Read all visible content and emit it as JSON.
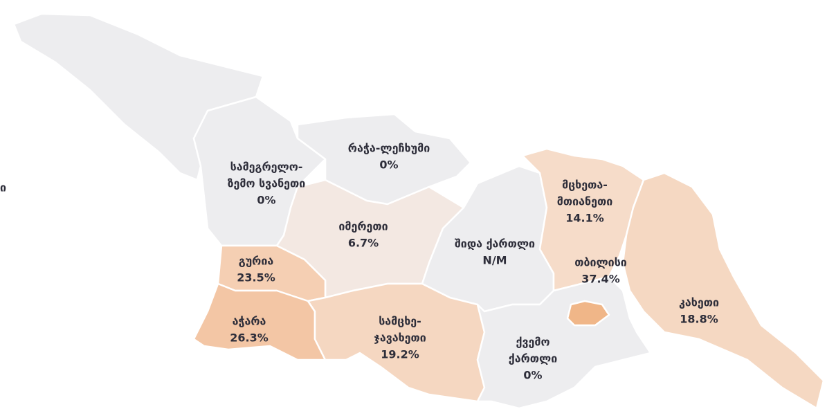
{
  "side_text": "ი",
  "regions": [
    {
      "name": [
        "რაჭა-ლეჩხუმი"
      ],
      "value": 0,
      "value_label": "0%",
      "color": "#ededef"
    },
    {
      "name": [
        "სამეგრელო-",
        "ზემო სვანეთი"
      ],
      "value": 0,
      "value_label": "0%",
      "color": "#ededef"
    },
    {
      "name": [
        "იმერეთი"
      ],
      "value": 6.7,
      "value_label": "6.7%",
      "color": "#f3e8e2"
    },
    {
      "name": [
        "შიდა ქართლი"
      ],
      "value": null,
      "value_label": "N/M",
      "color": "#ededef"
    },
    {
      "name": [
        "მცხეთა-",
        "მთიანეთი"
      ],
      "value": 14.1,
      "value_label": "14.1%",
      "color": "#f6dcc9"
    },
    {
      "name": [
        "გურია"
      ],
      "value": 23.5,
      "value_label": "23.5%",
      "color": "#f5cfb3"
    },
    {
      "name": [
        "აჭარა"
      ],
      "value": 26.3,
      "value_label": "26.3%",
      "color": "#f3c6a5"
    },
    {
      "name": [
        "სამცხე-",
        "ჯავახეთი"
      ],
      "value": 19.2,
      "value_label": "19.2%",
      "color": "#f5d7c1"
    },
    {
      "name": [
        "ქვემო",
        "ქართლი"
      ],
      "value": 0,
      "value_label": "0%",
      "color": "#ededef"
    },
    {
      "name": [
        "კახეთი"
      ],
      "value": 18.8,
      "value_label": "18.8%",
      "color": "#f5d8c2"
    },
    {
      "name": [
        "თბილისი"
      ],
      "value": 37.4,
      "value_label": "37.4%",
      "color": "#f0b688"
    }
  ]
}
